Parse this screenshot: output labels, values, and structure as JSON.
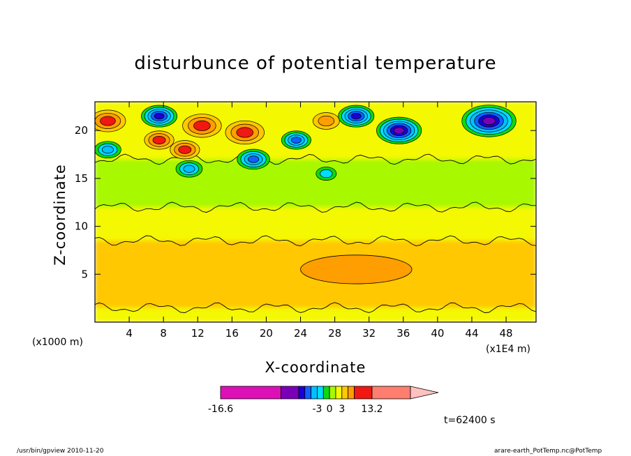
{
  "chart_data": {
    "type": "heatmap",
    "title": "disturbunce of potential temperature",
    "xlabel": "X-coordinate",
    "ylabel": "Z-coordinate",
    "x_unit_label": "(x1000 m)",
    "x_scale_label": "(x1E4 m)",
    "xlim": [
      0,
      51.5
    ],
    "ylim": [
      0,
      23
    ],
    "x_ticks": [
      4,
      8,
      12,
      16,
      20,
      24,
      28,
      32,
      36,
      40,
      44,
      48
    ],
    "y_ticks": [
      5,
      10,
      15,
      20
    ],
    "colorbar": {
      "levels": [
        -16.6,
        -9.5,
        -7.5,
        -6,
        -4.5,
        -3,
        -1.5,
        0,
        1.5,
        3,
        6,
        9.5,
        13.2
      ],
      "colors": [
        "#dd10b8",
        "#7a00b8",
        "#1a00d4",
        "#1060ff",
        "#00c0ff",
        "#00dcff",
        "#10d810",
        "#a8f800",
        "#f4f800",
        "#ffc800",
        "#ff9e00",
        "#f01810",
        "#ff7e70",
        "#ffc0c0"
      ],
      "tick_labels": [
        "-16.6",
        "-3",
        "0",
        "3",
        "13.2"
      ]
    },
    "bands": [
      {
        "z_range": [
          0,
          1.5
        ],
        "value": 0.5,
        "description": "light yellow near surface"
      },
      {
        "z_range": [
          1.5,
          8.5
        ],
        "value": 1.8,
        "description": "orange layer"
      },
      {
        "z_range": [
          4,
          7
        ],
        "x_range": [
          24,
          37
        ],
        "value": 3.5,
        "description": "darker orange core"
      },
      {
        "z_range": [
          8.5,
          12
        ],
        "value": 0.5,
        "description": "yellow layer"
      },
      {
        "z_range": [
          12,
          17
        ],
        "value": -0.8,
        "description": "green layer"
      },
      {
        "z_range": [
          17,
          23
        ],
        "value": "mixed",
        "description": "strong positive and negative anomalies"
      }
    ],
    "anomalies": [
      {
        "x": 12.5,
        "z": 20.5,
        "value": 9
      },
      {
        "x": 17.5,
        "z": 19.8,
        "value": 9
      },
      {
        "x": 1.5,
        "z": 21,
        "value": 8
      },
      {
        "x": 7.5,
        "z": 19,
        "value": 6
      },
      {
        "x": 10.5,
        "z": 18,
        "value": 6
      },
      {
        "x": 27,
        "z": 21,
        "value": 5
      },
      {
        "x": 46,
        "z": 21,
        "value": -14
      },
      {
        "x": 35.5,
        "z": 20,
        "value": -11
      },
      {
        "x": 30.5,
        "z": 21.5,
        "value": -8
      },
      {
        "x": 18.5,
        "z": 17,
        "value": -7
      },
      {
        "x": 11,
        "z": 16,
        "value": -5
      },
      {
        "x": 23.5,
        "z": 19,
        "value": -6
      },
      {
        "x": 7.5,
        "z": 21.5,
        "value": -8
      },
      {
        "x": 1.5,
        "z": 18,
        "value": -5
      },
      {
        "x": 27,
        "z": 15.5,
        "value": -3
      }
    ]
  },
  "time_label": "t=62400 s",
  "footer_left": "/usr/bin/gpview  2010-11-20",
  "footer_right": "arare-earth_PotTemp.nc@PotTemp"
}
